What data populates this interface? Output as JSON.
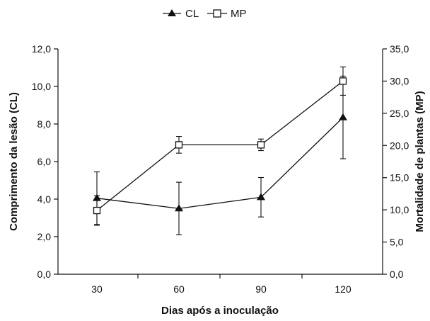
{
  "chart_data": {
    "type": "line",
    "x": [
      30,
      60,
      90,
      120
    ],
    "xlabel": "Dias após a inoculação",
    "ylabel_left": "Comprimento da lesão (CL)",
    "ylabel_right": "Mortalidade de plantas (MP)",
    "ylim_left": [
      0,
      12
    ],
    "ylim_right": [
      0,
      35
    ],
    "yticks_left": [
      "0,0",
      "2,0",
      "4,0",
      "6,0",
      "8,0",
      "10,0",
      "12,0"
    ],
    "yticks_right": [
      "0,0",
      "5,0",
      "10,0",
      "15,0",
      "20,0",
      "25,0",
      "30,0",
      "35,0"
    ],
    "xticks": [
      "30",
      "60",
      "90",
      "120"
    ],
    "grid": false,
    "legend_position": "top-center",
    "series": [
      {
        "name": "CL",
        "axis": "left",
        "marker": "filled-triangle",
        "values": [
          4.05,
          3.5,
          4.1,
          8.35
        ],
        "error": [
          1.4,
          1.4,
          1.05,
          2.2
        ]
      },
      {
        "name": "MP",
        "axis": "right",
        "marker": "open-square",
        "values": [
          9.9,
          20.1,
          20.1,
          30.0
        ],
        "error": [
          2.3,
          1.3,
          0.9,
          2.2
        ]
      }
    ]
  }
}
